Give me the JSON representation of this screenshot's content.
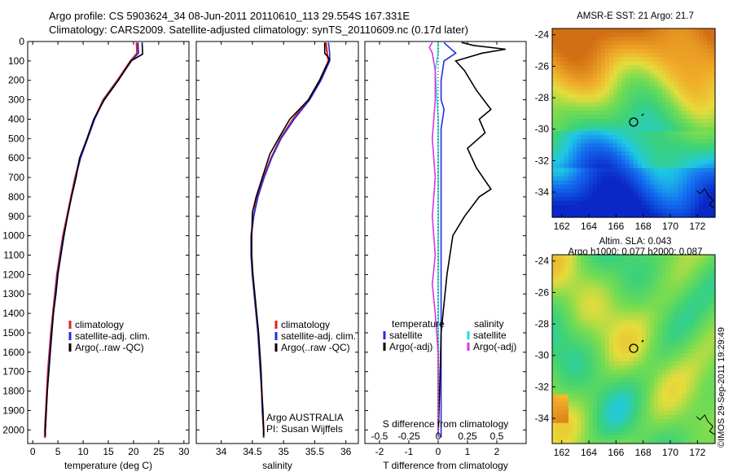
{
  "header": {
    "line1": "Argo profile: CS 5903624_34 08-Jun-2011 20110610_113 29.554S 167.331E",
    "line2": "Climatology: CARS2009. Satellite-adjusted climatology: synTS_20110609.nc (0.17d later)"
  },
  "footer": {
    "stamp": "©IMOS 29-Sep-2011 19:29:49"
  },
  "colors": {
    "climatology": "#dd2222",
    "satellite": "#1f2fe0",
    "argo": "#000000",
    "sal_satellite": "#22dddd",
    "sal_argo": "#dd33dd"
  },
  "chart_data": [
    {
      "type": "line",
      "panel": "temperature",
      "xlabel": "temperature (deg C)",
      "ylabel": "",
      "xlim": [
        -1,
        31
      ],
      "ylim": [
        2070,
        0
      ],
      "xticks": [
        0,
        5,
        10,
        15,
        20,
        25,
        30
      ],
      "yticks": [
        0,
        100,
        200,
        300,
        400,
        500,
        600,
        700,
        800,
        900,
        1000,
        1100,
        1200,
        1300,
        1400,
        1500,
        1600,
        1700,
        1800,
        1900,
        2000
      ],
      "legend": [
        "climatology",
        "satellite-adj. clim.",
        "Argo(..raw -QC)"
      ],
      "annotation": [],
      "series": [
        {
          "name": "climatology",
          "color_key": "climatology",
          "points": [
            [
              20.6,
              5
            ],
            [
              20.7,
              60
            ],
            [
              19.4,
              100
            ],
            [
              16.8,
              200
            ],
            [
              14.0,
              300
            ],
            [
              12.2,
              400
            ],
            [
              10.8,
              500
            ],
            [
              9.4,
              600
            ],
            [
              8.4,
              700
            ],
            [
              7.6,
              800
            ],
            [
              6.8,
              900
            ],
            [
              6.0,
              1000
            ],
            [
              5.4,
              1100
            ],
            [
              4.8,
              1200
            ],
            [
              4.4,
              1300
            ],
            [
              4.0,
              1400
            ],
            [
              3.6,
              1500
            ],
            [
              3.3,
              1600
            ],
            [
              3.0,
              1700
            ],
            [
              2.8,
              1800
            ],
            [
              2.6,
              1900
            ],
            [
              2.4,
              2000
            ],
            [
              2.4,
              2040
            ]
          ]
        },
        {
          "name": "satellite-adj. clim.",
          "color_key": "satellite",
          "points": [
            [
              20.9,
              5
            ],
            [
              21.0,
              60
            ],
            [
              19.6,
              100
            ],
            [
              16.9,
              200
            ],
            [
              14.1,
              300
            ],
            [
              12.3,
              400
            ],
            [
              10.9,
              500
            ],
            [
              9.5,
              600
            ],
            [
              8.5,
              700
            ],
            [
              7.7,
              800
            ],
            [
              6.9,
              900
            ],
            [
              6.1,
              1000
            ],
            [
              5.5,
              1100
            ],
            [
              4.9,
              1200
            ],
            [
              4.5,
              1300
            ],
            [
              4.1,
              1400
            ],
            [
              3.7,
              1500
            ],
            [
              3.4,
              1600
            ],
            [
              3.1,
              1700
            ],
            [
              2.9,
              1800
            ],
            [
              2.7,
              1900
            ],
            [
              2.5,
              2000
            ],
            [
              2.5,
              2040
            ]
          ]
        },
        {
          "name": "Argo(..raw -QC)",
          "color_key": "argo",
          "points": [
            [
              21.7,
              5
            ],
            [
              21.8,
              65
            ],
            [
              19.5,
              100
            ],
            [
              17.0,
              200
            ],
            [
              14.2,
              300
            ],
            [
              12.1,
              400
            ],
            [
              10.8,
              500
            ],
            [
              9.3,
              600
            ],
            [
              8.6,
              700
            ],
            [
              7.7,
              800
            ],
            [
              6.9,
              900
            ],
            [
              6.2,
              1000
            ],
            [
              5.6,
              1100
            ],
            [
              5.0,
              1200
            ],
            [
              4.6,
              1300
            ],
            [
              4.1,
              1400
            ],
            [
              3.8,
              1500
            ],
            [
              3.5,
              1600
            ],
            [
              3.2,
              1700
            ],
            [
              2.9,
              1800
            ],
            [
              2.7,
              1900
            ],
            [
              2.5,
              2000
            ],
            [
              2.5,
              2030
            ]
          ]
        }
      ]
    },
    {
      "type": "line",
      "panel": "salinity",
      "xlabel": "salinity",
      "xlim": [
        33.6,
        36.2
      ],
      "ylim": [
        2070,
        0
      ],
      "xticks": [
        34,
        34.5,
        35,
        35.5,
        36
      ],
      "legend": [
        "climatology",
        "satellite-adj. clim.",
        "Argo(..raw -QC)"
      ],
      "annotation": [
        "Argo AUSTRALIA",
        "PI: Susan Wijffels"
      ],
      "series": [
        {
          "name": "climatology",
          "color_key": "climatology",
          "points": [
            [
              35.68,
              5
            ],
            [
              35.7,
              60
            ],
            [
              35.72,
              100
            ],
            [
              35.58,
              200
            ],
            [
              35.4,
              300
            ],
            [
              35.15,
              400
            ],
            [
              34.95,
              500
            ],
            [
              34.8,
              600
            ],
            [
              34.68,
              700
            ],
            [
              34.58,
              800
            ],
            [
              34.52,
              900
            ],
            [
              34.48,
              1000
            ],
            [
              34.48,
              1100
            ],
            [
              34.5,
              1200
            ],
            [
              34.53,
              1300
            ],
            [
              34.56,
              1400
            ],
            [
              34.59,
              1500
            ],
            [
              34.61,
              1600
            ],
            [
              34.63,
              1700
            ],
            [
              34.65,
              1800
            ],
            [
              34.66,
              1900
            ],
            [
              34.68,
              2000
            ],
            [
              34.68,
              2040
            ]
          ]
        },
        {
          "name": "satellite-adj. clim.",
          "color_key": "satellite",
          "points": [
            [
              35.72,
              5
            ],
            [
              35.74,
              60
            ],
            [
              35.74,
              100
            ],
            [
              35.6,
              200
            ],
            [
              35.42,
              300
            ],
            [
              35.17,
              400
            ],
            [
              34.96,
              500
            ],
            [
              34.81,
              600
            ],
            [
              34.69,
              700
            ],
            [
              34.59,
              800
            ],
            [
              34.52,
              900
            ],
            [
              34.48,
              1000
            ],
            [
              34.48,
              1100
            ],
            [
              34.5,
              1200
            ],
            [
              34.53,
              1300
            ],
            [
              34.56,
              1400
            ],
            [
              34.59,
              1500
            ],
            [
              34.61,
              1600
            ],
            [
              34.63,
              1700
            ],
            [
              34.65,
              1800
            ],
            [
              34.66,
              1900
            ],
            [
              34.68,
              2000
            ],
            [
              34.68,
              2040
            ]
          ]
        },
        {
          "name": "Argo(..raw -QC)",
          "color_key": "argo",
          "points": [
            [
              35.66,
              5
            ],
            [
              35.66,
              60
            ],
            [
              35.74,
              90
            ],
            [
              35.58,
              200
            ],
            [
              35.4,
              300
            ],
            [
              35.1,
              400
            ],
            [
              34.92,
              500
            ],
            [
              34.78,
              580
            ],
            [
              34.66,
              700
            ],
            [
              34.56,
              800
            ],
            [
              34.5,
              880
            ],
            [
              34.49,
              1000
            ],
            [
              34.49,
              1100
            ],
            [
              34.51,
              1200
            ],
            [
              34.54,
              1300
            ],
            [
              34.57,
              1400
            ],
            [
              34.6,
              1500
            ],
            [
              34.62,
              1600
            ],
            [
              34.64,
              1700
            ],
            [
              34.65,
              1800
            ],
            [
              34.67,
              1900
            ],
            [
              34.68,
              2000
            ],
            [
              34.68,
              2030
            ]
          ]
        }
      ]
    },
    {
      "type": "line",
      "panel": "difference",
      "xlabel": "T difference from climatology",
      "xlabel_top": "S difference from climatology",
      "xlim": [
        -2.5,
        3
      ],
      "ylim": [
        2070,
        0
      ],
      "xticks": [
        -2,
        -1,
        0,
        1,
        2
      ],
      "xticks_s": [
        -0.5,
        -0.25,
        0,
        0.25,
        0.5
      ],
      "legend_temperature": [
        "temperature",
        "satellite",
        "Argo(-adj)"
      ],
      "legend_salinity": [
        "salinity",
        "satellite",
        "Argo(-adj)"
      ],
      "series": [
        {
          "name": "temperature satellite",
          "color_key": "satellite",
          "points": [
            [
              0.2,
              5
            ],
            [
              0.3,
              20
            ],
            [
              0.6,
              60
            ],
            [
              0.2,
              100
            ],
            [
              0.1,
              200
            ],
            [
              0.1,
              300
            ],
            [
              0.2,
              350
            ],
            [
              0.1,
              450
            ],
            [
              0.1,
              600
            ],
            [
              0.1,
              800
            ],
            [
              0.1,
              1000
            ],
            [
              0.1,
              1200
            ],
            [
              0.1,
              1500
            ],
            [
              0.1,
              1800
            ],
            [
              0.1,
              2040
            ]
          ]
        },
        {
          "name": "temperature Argo(-adj)",
          "color_key": "argo",
          "points": [
            [
              0.8,
              5
            ],
            [
              1.2,
              20
            ],
            [
              2.3,
              40
            ],
            [
              1.5,
              60
            ],
            [
              0.6,
              100
            ],
            [
              0.9,
              150
            ],
            [
              1.3,
              250
            ],
            [
              1.8,
              350
            ],
            [
              1.4,
              400
            ],
            [
              1.6,
              470
            ],
            [
              1.0,
              550
            ],
            [
              1.3,
              650
            ],
            [
              1.8,
              760
            ],
            [
              1.4,
              800
            ],
            [
              0.9,
              900
            ],
            [
              0.5,
              1000
            ],
            [
              0.3,
              1200
            ],
            [
              0.1,
              1500
            ],
            [
              0.05,
              1800
            ],
            [
              0.0,
              2030
            ]
          ]
        },
        {
          "name": "salinity satellite",
          "color_key": "sal_satellite",
          "points": [
            [
              0.0,
              5
            ],
            [
              0.0,
              60
            ],
            [
              -0.1,
              150
            ],
            [
              0.0,
              400
            ],
            [
              0.0,
              700
            ],
            [
              0.0,
              1000
            ],
            [
              0.0,
              1300
            ],
            [
              0.0,
              1600
            ],
            [
              0.0,
              2040
            ]
          ]
        },
        {
          "name": "salinity Argo(-adj)",
          "color_key": "sal_argo",
          "points": [
            [
              -0.2,
              5
            ],
            [
              -0.3,
              30
            ],
            [
              -0.2,
              60
            ],
            [
              -0.1,
              150
            ],
            [
              -0.1,
              300
            ],
            [
              -0.2,
              500
            ],
            [
              -0.1,
              700
            ],
            [
              -0.2,
              900
            ],
            [
              -0.1,
              1100
            ],
            [
              -0.2,
              1250
            ],
            [
              -0.1,
              1400
            ],
            [
              0.0,
              1600
            ],
            [
              0.0,
              1800
            ],
            [
              0.0,
              2030
            ]
          ]
        }
      ]
    },
    {
      "type": "heatmap",
      "panel": "sst_map",
      "title": "AMSR-E SST: 21 Argo: 21.7",
      "xlim": [
        161.3,
        173.3
      ],
      "ylim": [
        -35.6,
        -23.6
      ],
      "xticks": [
        162,
        164,
        166,
        168,
        170,
        172
      ],
      "yticks": [
        -24,
        -26,
        -28,
        -30,
        -32,
        -34
      ],
      "marker": [
        167.3,
        -29.55
      ]
    },
    {
      "type": "heatmap",
      "panel": "sla_map",
      "title": "Altim. SLA: 0.043",
      "subtitle": "Argo h1000: 0.077 h2000: 0.087",
      "xlim": [
        161.3,
        173.3
      ],
      "ylim": [
        -35.6,
        -23.6
      ],
      "xticks": [
        162,
        164,
        166,
        168,
        170,
        172
      ],
      "yticks": [
        -24,
        -26,
        -28,
        -30,
        -32,
        -34
      ],
      "marker": [
        167.3,
        -29.55
      ]
    }
  ]
}
